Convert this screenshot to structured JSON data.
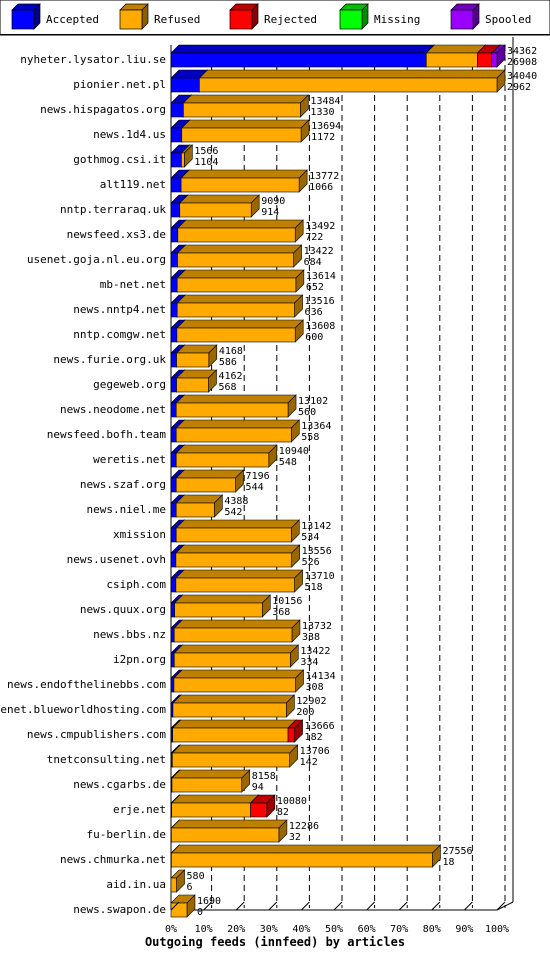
{
  "chart_data": {
    "type": "bar",
    "orientation": "horizontal",
    "stacked": true,
    "xlabel": "Outgoing feeds (innfeed) by articles",
    "ylabel": "",
    "xlim": [
      0,
      100
    ],
    "x_ticks": [
      "0%",
      "10%",
      "20%",
      "30%",
      "40%",
      "50%",
      "60%",
      "70%",
      "80%",
      "90%",
      "100%"
    ],
    "grid": "vertical dashed",
    "legend_position": "top",
    "legend": [
      {
        "name": "Accepted",
        "color": "#0000ff"
      },
      {
        "name": "Refused",
        "color": "#ffaa00"
      },
      {
        "name": "Rejected",
        "color": "#ff0000"
      },
      {
        "name": "Missing",
        "color": "#00ff00"
      },
      {
        "name": "Spooled",
        "color": "#9900ff"
      }
    ],
    "categories": [
      "nyheter.lysator.liu.se",
      "pionier.net.pl",
      "news.hispagatos.org",
      "news.1d4.us",
      "gothmog.csi.it",
      "alt119.net",
      "nntp.terraraq.uk",
      "newsfeed.xs3.de",
      "usenet.goja.nl.eu.org",
      "mb-net.net",
      "news.nntp4.net",
      "nntp.comgw.net",
      "news.furie.org.uk",
      "gegeweb.org",
      "news.neodome.net",
      "newsfeed.bofh.team",
      "weretis.net",
      "news.szaf.org",
      "news.niel.me",
      "xmission",
      "news.usenet.ovh",
      "csiph.com",
      "news.quux.org",
      "news.bbs.nz",
      "i2pn.org",
      "news.endofthelinebbs.com",
      "usenet.blueworldhosting.com",
      "news.cmpublishers.com",
      "tnetconsulting.net",
      "news.cgarbs.de",
      "erje.net",
      "fu-berlin.de",
      "news.chmurka.net",
      "aid.in.ua",
      "news.swapon.de"
    ],
    "offered_labels": [
      "34362",
      "34040",
      "13484",
      "13694",
      "1566",
      "13772",
      "9090",
      "13492",
      "13422",
      "13614",
      "13516",
      "13608",
      "4168",
      "4162",
      "13102",
      "13364",
      "10940",
      "7196",
      "4388",
      "13142",
      "13556",
      "13710",
      "10156",
      "13732",
      "13422",
      "14134",
      "12902",
      "13666",
      "13706",
      "8158",
      "10080",
      "12286",
      "27556",
      "580",
      "1690"
    ],
    "accepted_labels": [
      "26908",
      "2962",
      "1330",
      "1172",
      "1104",
      "1066",
      "914",
      "722",
      "684",
      "652",
      "636",
      "600",
      "586",
      "568",
      "560",
      "558",
      "548",
      "544",
      "542",
      "534",
      "526",
      "518",
      "368",
      "338",
      "334",
      "308",
      "200",
      "182",
      "142",
      "94",
      "82",
      "32",
      "18",
      "6",
      "0"
    ],
    "series": [
      {
        "name": "Accepted",
        "values": [
          78.3,
          8.7,
          3.8,
          3.3,
          3.2,
          3.1,
          2.7,
          2.1,
          2.0,
          1.9,
          1.9,
          1.8,
          1.7,
          1.7,
          1.6,
          1.6,
          1.6,
          1.6,
          1.6,
          1.6,
          1.5,
          1.5,
          1.1,
          1.0,
          1.0,
          0.9,
          0.6,
          0.5,
          0.4,
          0.3,
          0.2,
          0.1,
          0.1,
          0.0,
          0.0
        ]
      },
      {
        "name": "Refused",
        "values": [
          15.7,
          91.3,
          35.9,
          36.6,
          0.9,
          36.2,
          21.9,
          36.0,
          35.6,
          36.4,
          36.0,
          36.3,
          9.9,
          9.8,
          34.3,
          35.3,
          28.4,
          18.2,
          11.7,
          35.3,
          35.5,
          36.4,
          26.9,
          36.1,
          35.6,
          37.3,
          34.8,
          35.4,
          36.0,
          21.4,
          24.2,
          33.0,
          80.1,
          1.7,
          4.9
        ]
      },
      {
        "name": "Rejected",
        "values": [
          4.4,
          0,
          0,
          0,
          0,
          0,
          0,
          0,
          0,
          0,
          0,
          0,
          0,
          0,
          0,
          0,
          0,
          0,
          0,
          0,
          0,
          0,
          0,
          0,
          0,
          0,
          0,
          2.0,
          0,
          0,
          5.0,
          0,
          0,
          0,
          0
        ]
      },
      {
        "name": "Missing",
        "values": [
          0,
          0,
          0,
          0,
          0,
          0,
          0,
          0,
          0,
          0,
          0,
          0,
          0,
          0,
          0,
          0,
          0,
          0,
          0,
          0,
          0,
          0,
          0,
          0,
          0,
          0,
          0,
          0,
          0,
          0,
          0,
          0,
          0,
          0,
          0
        ]
      },
      {
        "name": "Spooled",
        "values": [
          1.6,
          0,
          0,
          0,
          0,
          0,
          0,
          0,
          0,
          0,
          0,
          0,
          0,
          0,
          0,
          0,
          0,
          0,
          0,
          0,
          0,
          0,
          0,
          0,
          0,
          0,
          0,
          0,
          0,
          0,
          0,
          0,
          0,
          0,
          0
        ]
      }
    ]
  }
}
